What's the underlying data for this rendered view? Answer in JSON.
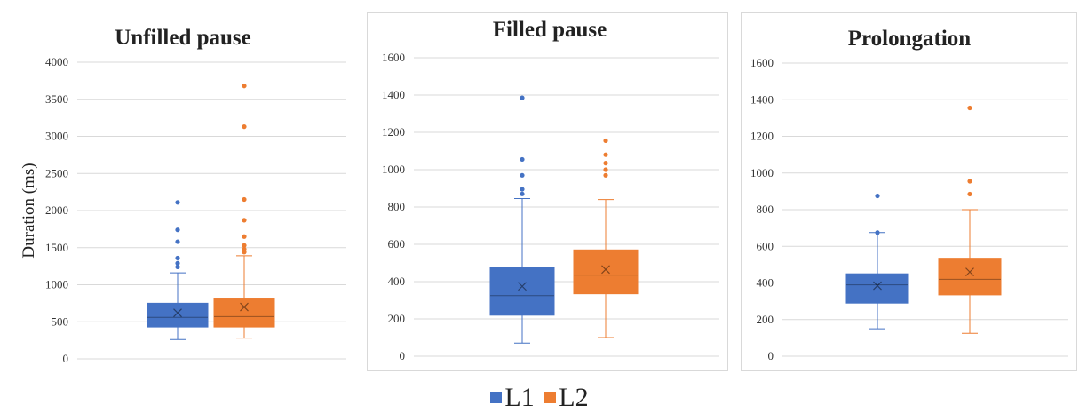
{
  "chart_data": [
    {
      "type": "box",
      "title": "Unfilled pause",
      "ylabel": "Duration (ms)",
      "ylim": [
        0,
        4000
      ],
      "yticks": [
        0,
        500,
        1000,
        1500,
        2000,
        2500,
        3000,
        3500,
        4000
      ],
      "grid": true,
      "series": [
        {
          "name": "L1",
          "min": 260,
          "q1": 430,
          "median": 560,
          "q3": 750,
          "max": 1160,
          "mean": 620,
          "outliers": [
            1240,
            1290,
            1360,
            1580,
            1740,
            2110
          ]
        },
        {
          "name": "L2",
          "min": 280,
          "q1": 430,
          "median": 570,
          "q3": 820,
          "max": 1390,
          "mean": 700,
          "outliers": [
            1440,
            1480,
            1530,
            1650,
            1870,
            2150,
            3130,
            3680
          ]
        }
      ]
    },
    {
      "type": "box",
      "title": "Filled pause",
      "ylabel": "",
      "ylim": [
        0,
        1600
      ],
      "yticks": [
        0,
        200,
        400,
        600,
        800,
        1000,
        1200,
        1400,
        1600
      ],
      "grid": true,
      "series": [
        {
          "name": "L1",
          "min": 70,
          "q1": 220,
          "median": 325,
          "q3": 475,
          "max": 845,
          "mean": 375,
          "outliers": [
            870,
            895,
            970,
            1055,
            1385
          ]
        },
        {
          "name": "L2",
          "min": 100,
          "q1": 335,
          "median": 435,
          "q3": 570,
          "max": 840,
          "mean": 465,
          "outliers": [
            970,
            1000,
            1035,
            1080,
            1155
          ]
        }
      ]
    },
    {
      "type": "box",
      "title": "Prolongation",
      "ylabel": "",
      "ylim": [
        0,
        1600
      ],
      "yticks": [
        0,
        200,
        400,
        600,
        800,
        1000,
        1200,
        1400,
        1600
      ],
      "grid": true,
      "series": [
        {
          "name": "L1",
          "min": 150,
          "q1": 290,
          "median": 390,
          "q3": 450,
          "max": 675,
          "mean": 385,
          "outliers": [
            675,
            875
          ]
        },
        {
          "name": "L2",
          "min": 125,
          "q1": 335,
          "median": 420,
          "q3": 535,
          "max": 800,
          "mean": 460,
          "outliers": [
            885,
            955,
            1355
          ]
        }
      ]
    }
  ],
  "legend": {
    "placement": "bottom",
    "items": [
      {
        "label": "L1",
        "color": "#4472C4"
      },
      {
        "label": "L2",
        "color": "#ED7D31"
      }
    ]
  },
  "colors": {
    "L1": "#4472C4",
    "L2": "#ED7D31",
    "grid": "#d9d9d9",
    "axis_text": "#333333"
  }
}
